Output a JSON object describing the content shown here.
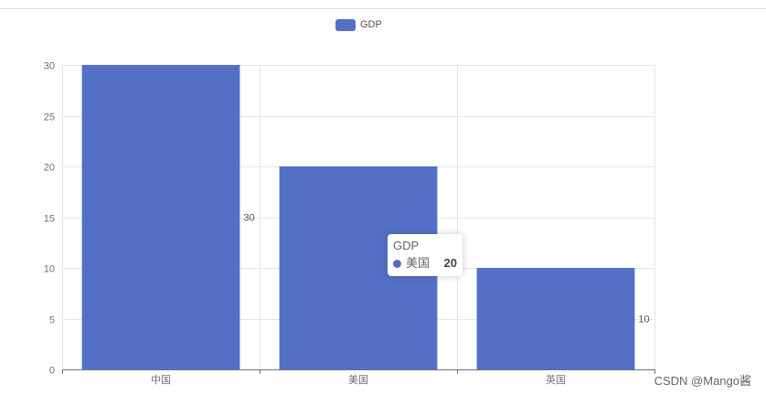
{
  "chart_data": {
    "type": "bar",
    "categories": [
      "中国",
      "美国",
      "英国"
    ],
    "series": [
      {
        "name": "GDP",
        "values": [
          30,
          20,
          10
        ]
      }
    ],
    "data_labels": [
      "30",
      "",
      "10"
    ],
    "ylim": [
      0,
      30
    ],
    "yticks": [
      0,
      5,
      10,
      15,
      20,
      25,
      30
    ],
    "title": "",
    "xlabel": "",
    "ylabel": "",
    "grid": true,
    "legend_position": "top-center",
    "color": "#5470c6"
  },
  "legend": {
    "label": "GDP",
    "color": "#5470c6"
  },
  "tooltip": {
    "title": "GDP",
    "name": "美国",
    "value": "20",
    "color": "#5470c6"
  },
  "watermark": "CSDN @Mango酱"
}
